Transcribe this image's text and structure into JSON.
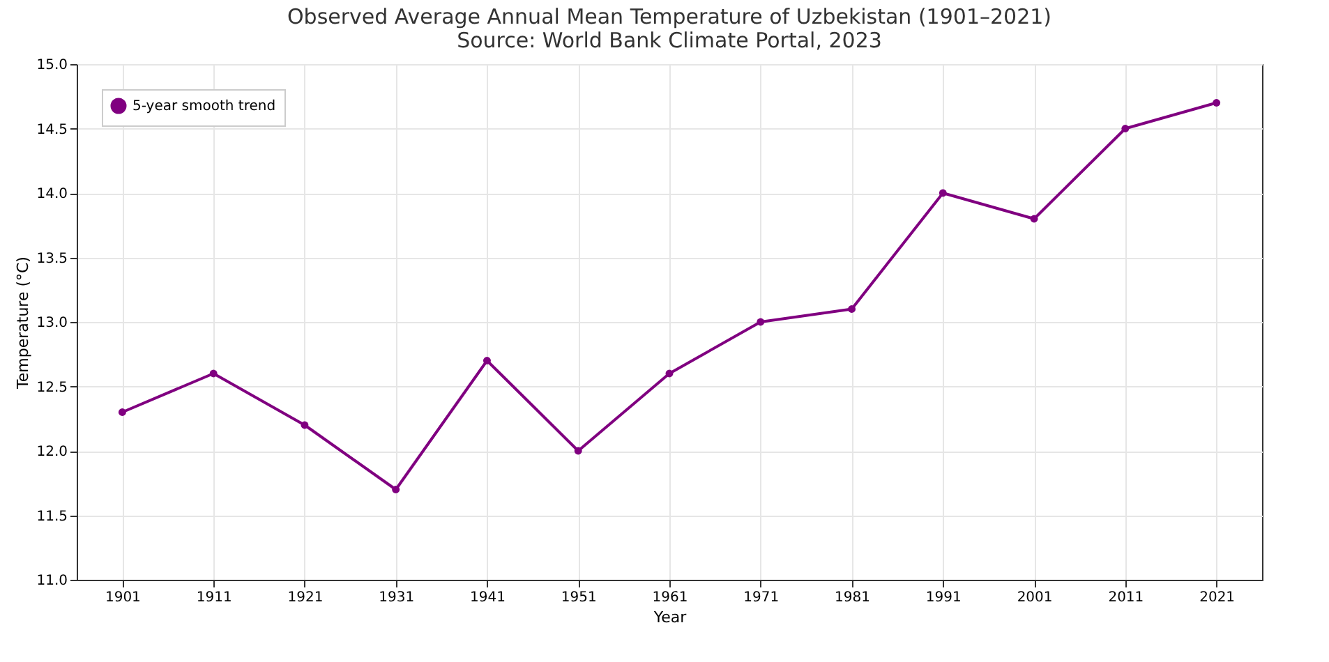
{
  "chart_data": {
    "type": "line",
    "title": "Observed Average Annual Mean Temperature of Uzbekistan (1901–2021)",
    "subtitle": "Source: World Bank Climate Portal, 2023",
    "xlabel": "Year",
    "ylabel": "Temperature (°C)",
    "categories": [
      "1901",
      "1911",
      "1921",
      "1931",
      "1941",
      "1951",
      "1961",
      "1971",
      "1981",
      "1991",
      "2001",
      "2011",
      "2021"
    ],
    "series": [
      {
        "name": "5-year smooth trend",
        "color": "#800080",
        "values": [
          12.3,
          12.6,
          12.2,
          11.7,
          12.7,
          12.0,
          12.6,
          13.0,
          13.1,
          14.0,
          13.8,
          14.5,
          14.7
        ]
      }
    ],
    "ylim": [
      11.0,
      15.0
    ],
    "yticks": [
      {
        "value": 11,
        "label": "11.0"
      },
      11.5,
      {
        "value": 12,
        "label": "12.0"
      },
      12.5,
      {
        "value": 13,
        "label": "13.0"
      },
      13.5,
      {
        "value": 14,
        "label": "14.0"
      },
      14.5,
      {
        "value": 15,
        "label": "15.0"
      }
    ],
    "grid": true,
    "legend": "top left",
    "marker": "circle",
    "line_style": "solid"
  }
}
